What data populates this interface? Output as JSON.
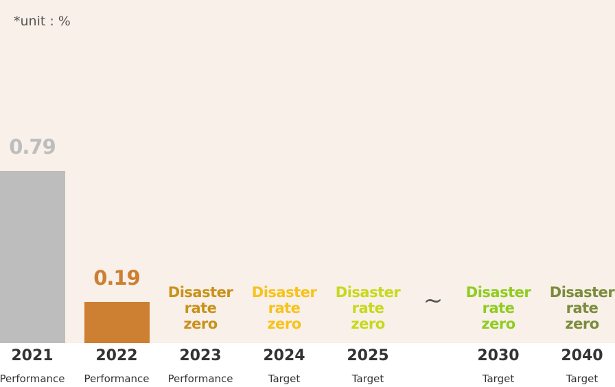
{
  "chart_data": {
    "type": "bar",
    "unit_note": "*unit : %",
    "categories": [
      {
        "year": "2021",
        "kind": "Performance",
        "value": 0.79,
        "label": "0.79",
        "color": "#bdbdbd"
      },
      {
        "year": "2022",
        "kind": "Performance",
        "value": 0.19,
        "label": "0.19",
        "color": "#cd7f32"
      },
      {
        "year": "2023",
        "kind": "Performance",
        "target_text": [
          "Disaster",
          "rate",
          "zero"
        ],
        "color": "#c9911a"
      },
      {
        "year": "2024",
        "kind": "Target",
        "target_text": [
          "Disaster",
          "rate",
          "zero"
        ],
        "color": "#f7c21b"
      },
      {
        "year": "2025",
        "kind": "Target",
        "target_text": [
          "Disaster",
          "rate",
          "zero"
        ],
        "color": "#c8d81c"
      },
      {
        "year": "2030",
        "kind": "Target",
        "target_text": [
          "Disaster",
          "rate",
          "zero"
        ],
        "color": "#8fcc1f"
      },
      {
        "year": "2040",
        "kind": "Target",
        "target_text": [
          "Disaster",
          "rate",
          "zero"
        ],
        "color": "#7b8c3b"
      }
    ],
    "separator": "~",
    "value_label_color_2021": "#bdbdbd"
  }
}
